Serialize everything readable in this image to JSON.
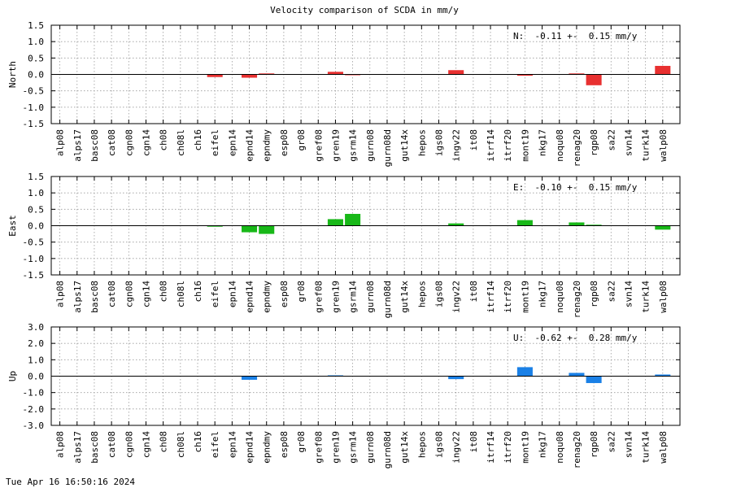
{
  "title": "Velocity comparison of SCDA in mm/y",
  "footer_timestamp": "Tue Apr 16 16:50:16 2024",
  "colors": {
    "north": "#e83030",
    "east": "#18b818",
    "up": "#1a80e6"
  },
  "chart_data": [
    {
      "type": "bar",
      "panel": "north",
      "ylabel": "North",
      "annotation": "N:  -0.11 +-  0.15 mm/y",
      "ylim": [
        -1.5,
        1.5
      ],
      "yticks": [
        -1.5,
        -1.0,
        -0.5,
        0.0,
        0.5,
        1.0,
        1.5
      ],
      "ytick_labels": [
        "-1.5",
        "-1.0",
        "-0.5",
        "0.0",
        "0.5",
        "1.0",
        "1.5"
      ],
      "grid": true,
      "categories": [
        "alp08",
        "alps17",
        "basc08",
        "cat08",
        "cgn08",
        "cgn14",
        "ch08",
        "ch08l",
        "ch16",
        "eifel",
        "epn14",
        "epnd14",
        "epndmy",
        "esp08",
        "gr08",
        "gref08",
        "gren19",
        "gsrm14",
        "gurn08",
        "gurn08d",
        "gut14x",
        "hepos",
        "igs08",
        "ingv22",
        "it08",
        "itrf14",
        "itrf20",
        "mont19",
        "nkg17",
        "noqu08",
        "renag20",
        "rgp08",
        "sa22",
        "svn14",
        "turk14",
        "walp08"
      ],
      "values": [
        0,
        0,
        0,
        0,
        0,
        0,
        0,
        0,
        0,
        -0.08,
        0,
        -0.1,
        0.03,
        0,
        0,
        0,
        0.08,
        -0.02,
        0,
        0,
        0,
        0,
        0,
        0.13,
        0,
        0,
        0,
        -0.04,
        0,
        0,
        0.03,
        -0.33,
        0,
        0,
        0,
        0.26
      ]
    },
    {
      "type": "bar",
      "panel": "east",
      "ylabel": "East",
      "annotation": "E:  -0.10 +-  0.15 mm/y",
      "ylim": [
        -1.5,
        1.5
      ],
      "yticks": [
        -1.5,
        -1.0,
        -0.5,
        0.0,
        0.5,
        1.0,
        1.5
      ],
      "ytick_labels": [
        "-1.5",
        "-1.0",
        "-0.5",
        "0.0",
        "0.5",
        "1.0",
        "1.5"
      ],
      "grid": true,
      "categories": [
        "alp08",
        "alps17",
        "basc08",
        "cat08",
        "cgn08",
        "cgn14",
        "ch08",
        "ch08l",
        "ch16",
        "eifel",
        "epn14",
        "epnd14",
        "epndmy",
        "esp08",
        "gr08",
        "gref08",
        "gren19",
        "gsrm14",
        "gurn08",
        "gurn08d",
        "gut14x",
        "hepos",
        "igs08",
        "ingv22",
        "it08",
        "itrf14",
        "itrf20",
        "mont19",
        "nkg17",
        "noqu08",
        "renag20",
        "rgp08",
        "sa22",
        "svn14",
        "turk14",
        "walp08"
      ],
      "values": [
        0,
        0,
        0,
        0,
        0,
        0,
        0,
        0,
        0,
        -0.03,
        0,
        -0.2,
        -0.25,
        0,
        0,
        0,
        0.2,
        0.36,
        0,
        0,
        0,
        0,
        0,
        0.07,
        0,
        0,
        0,
        0.17,
        0,
        0,
        0.1,
        0.03,
        0,
        0,
        0,
        -0.12
      ]
    },
    {
      "type": "bar",
      "panel": "up",
      "ylabel": "Up",
      "annotation": "U:  -0.62 +-  0.28 mm/y",
      "ylim": [
        -3.0,
        3.0
      ],
      "yticks": [
        -3.0,
        -2.0,
        -1.0,
        0.0,
        1.0,
        2.0,
        3.0
      ],
      "ytick_labels": [
        "-3.0",
        "-2.0",
        "-1.0",
        "0.0",
        "1.0",
        "2.0",
        "3.0"
      ],
      "grid": true,
      "categories": [
        "alp08",
        "alps17",
        "basc08",
        "cat08",
        "cgn08",
        "cgn14",
        "ch08",
        "ch08l",
        "ch16",
        "eifel",
        "epn14",
        "epnd14",
        "epndmy",
        "esp08",
        "gr08",
        "gref08",
        "gren19",
        "gsrm14",
        "gurn08",
        "gurn08d",
        "gut14x",
        "hepos",
        "igs08",
        "ingv22",
        "it08",
        "itrf14",
        "itrf20",
        "mont19",
        "nkg17",
        "noqu08",
        "renag20",
        "rgp08",
        "sa22",
        "svn14",
        "turk14",
        "walp08"
      ],
      "values": [
        0,
        0,
        0,
        0,
        0,
        0,
        0,
        0,
        0,
        0,
        0,
        -0.22,
        0,
        0,
        0,
        0,
        0.05,
        0,
        0,
        0,
        0,
        0,
        0,
        -0.18,
        0,
        0,
        0,
        0.55,
        0,
        0,
        0.2,
        -0.42,
        0,
        0,
        0,
        0.1
      ]
    }
  ]
}
